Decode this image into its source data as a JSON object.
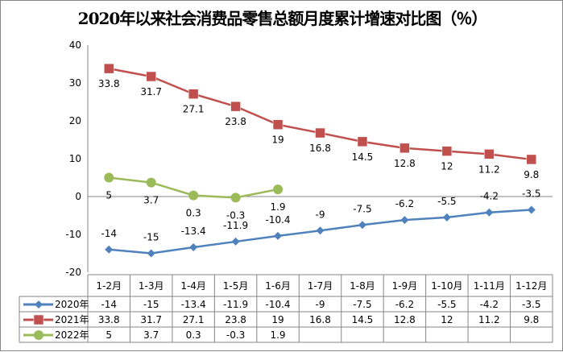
{
  "chart_data": {
    "type": "line",
    "title": "2020年以来社会消费品零售总额月度累计增速对比图（％）",
    "categories": [
      "1-2月",
      "1-3月",
      "1-4月",
      "1-5月",
      "1-6月",
      "1-7月",
      "1-8月",
      "1-9月",
      "1-10月",
      "1-11月",
      "1-12月"
    ],
    "ylim": [
      -20,
      40
    ],
    "yticks": [
      40,
      30,
      20,
      10,
      0,
      -10,
      -20
    ],
    "grid": false,
    "legend": "data-table",
    "series": [
      {
        "name": "2020年",
        "color": "#4F81BD",
        "marker": "diamond",
        "values": [
          -14,
          -15,
          -13.4,
          -11.9,
          -10.4,
          -9,
          -7.5,
          -6.2,
          -5.5,
          -4.2,
          -3.5
        ]
      },
      {
        "name": "2021年",
        "color": "#C0504D",
        "marker": "square",
        "values": [
          33.8,
          31.7,
          27.1,
          23.8,
          19,
          16.8,
          14.5,
          12.8,
          12,
          11.2,
          9.8
        ]
      },
      {
        "name": "2022年",
        "color": "#9BBB59",
        "marker": "circle",
        "values": [
          5,
          3.7,
          0.3,
          -0.3,
          1.9,
          null,
          null,
          null,
          null,
          null,
          null
        ]
      }
    ]
  }
}
